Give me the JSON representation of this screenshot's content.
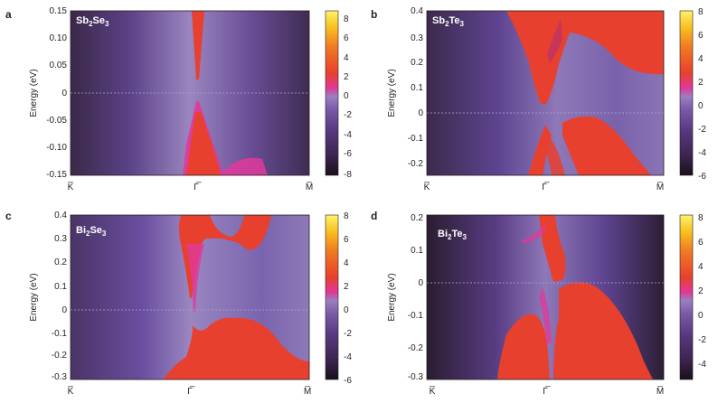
{
  "colormap": [
    "#1a0f1a",
    "#3c2450",
    "#5a3a82",
    "#7a5aa8",
    "#9a80c0",
    "#e0389a",
    "#e8402e",
    "#f07a22",
    "#f8c020",
    "#fff36a"
  ],
  "chart_data": [
    {
      "type": "heatmap",
      "panel": "a",
      "compound": {
        "base1": "Sb",
        "sub1": "2",
        "base2": "Se",
        "sub2": "3"
      },
      "ylabel": "Energy (eV)",
      "ylim": [
        -0.15,
        0.15
      ],
      "yticks": [
        "0.15",
        "0.10",
        "0.05",
        "0",
        "-0.05",
        "-0.10",
        "-0.15"
      ],
      "ytick_values": [
        0.15,
        0.1,
        0.05,
        0,
        -0.05,
        -0.1,
        -0.15
      ],
      "xticks": [
        "K̅",
        "Γ̅",
        "M̅"
      ],
      "fermi_level": 0,
      "colorbar": {
        "min": -8,
        "max": 8,
        "ticks": [
          "8",
          "6",
          "4",
          "2",
          "0",
          "-2",
          "-4",
          "-6",
          "-8"
        ],
        "tick_values": [
          8,
          6,
          4,
          2,
          0,
          -2,
          -4,
          -6,
          -8
        ]
      }
    },
    {
      "type": "heatmap",
      "panel": "b",
      "compound": {
        "base1": "Sb",
        "sub1": "2",
        "base2": "Te",
        "sub2": "3"
      },
      "ylabel": "Energy (eV)",
      "ylim": [
        -0.25,
        0.4
      ],
      "yticks": [
        "0.4",
        "0.3",
        "0.2",
        "0.1",
        "0",
        "-0.1",
        "-0.2"
      ],
      "ytick_values": [
        0.4,
        0.3,
        0.2,
        0.1,
        0,
        -0.1,
        -0.2
      ],
      "xticks": [
        "K̅",
        "Γ̅",
        "M̅"
      ],
      "fermi_level": 0,
      "colorbar": {
        "min": -6,
        "max": 8,
        "ticks": [
          "8",
          "6",
          "4",
          "2",
          "0",
          "-2",
          "-4",
          "-6"
        ],
        "tick_values": [
          8,
          6,
          4,
          2,
          0,
          -2,
          -4,
          -6
        ]
      }
    },
    {
      "type": "heatmap",
      "panel": "c",
      "compound": {
        "base1": "Bi",
        "sub1": "2",
        "base2": "Se",
        "sub2": "3"
      },
      "ylabel": "Energy (eV)",
      "ylim": [
        -0.32,
        0.4
      ],
      "yticks": [
        "0.4",
        "0.3",
        "0.2",
        "0.1",
        "0",
        "-0.1",
        "-0.2",
        "-0.3"
      ],
      "ytick_values": [
        0.4,
        0.3,
        0.2,
        0.1,
        0,
        -0.1,
        -0.2,
        -0.3
      ],
      "xticks": [
        "K̅",
        "Γ̅",
        "M̅"
      ],
      "fermi_level": 0,
      "colorbar": {
        "min": -6,
        "max": 8,
        "ticks": [
          "8",
          "6",
          "4",
          "2",
          "0",
          "-2",
          "-4",
          "-6"
        ],
        "tick_values": [
          8,
          6,
          4,
          2,
          0,
          -2,
          -4,
          -6
        ]
      }
    },
    {
      "type": "heatmap",
      "panel": "d",
      "compound": {
        "base1": "Bi",
        "sub1": "2",
        "base2": "Te",
        "sub2": "3"
      },
      "ylabel": "Energy (eV)",
      "ylim": [
        -0.31,
        0.2
      ],
      "yticks": [
        "0.2",
        "0.1",
        "0",
        "-0.1",
        "-0.2",
        "-0.3"
      ],
      "ytick_values": [
        0.2,
        0.1,
        0,
        -0.1,
        -0.2,
        -0.3
      ],
      "xticks": [
        "K̅",
        "Γ̅",
        "M̅"
      ],
      "fermi_level": 0,
      "colorbar": {
        "min": -5,
        "max": 8,
        "ticks": [
          "8",
          "6",
          "4",
          "2",
          "0",
          "-2",
          "-4"
        ],
        "tick_values": [
          8,
          6,
          4,
          2,
          0,
          -2,
          -4
        ]
      }
    }
  ]
}
